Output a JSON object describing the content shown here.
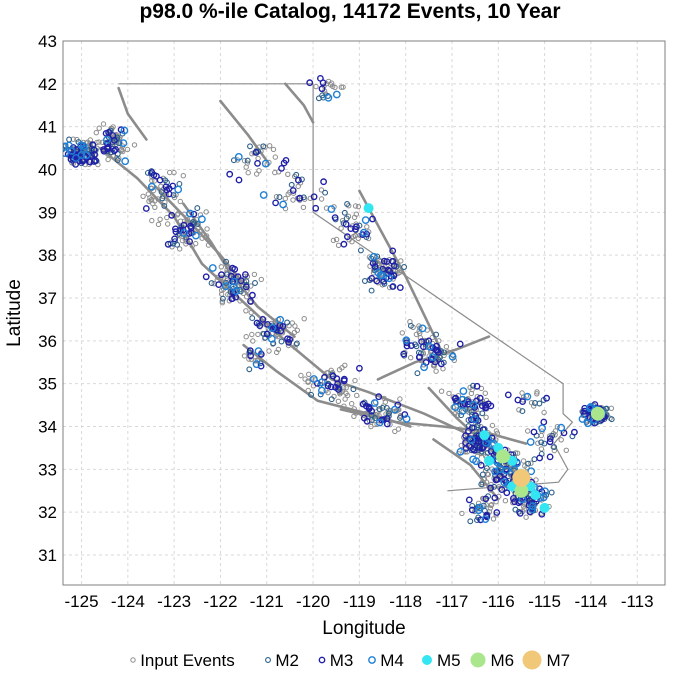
{
  "chart_data": {
    "type": "scatter",
    "title": "p98.0 %-ile Catalog, 14172 Events, 10 Year",
    "xlabel": "Longitude",
    "ylabel": "Latitude",
    "xlim": [
      -125.4,
      -112.4
    ],
    "ylim": [
      30.3,
      43.0
    ],
    "xticks": [
      -125,
      -124,
      -123,
      -122,
      -121,
      -120,
      -119,
      -118,
      -117,
      -116,
      -115,
      -114,
      -113
    ],
    "yticks": [
      31,
      32,
      33,
      34,
      35,
      36,
      37,
      38,
      39,
      40,
      41,
      42,
      43
    ],
    "grid": true,
    "legend_position": "bottom",
    "legend": [
      "Input Events",
      "M2",
      "M3",
      "M4",
      "M5",
      "M6",
      "M7"
    ],
    "colors": {
      "input_events": "#8c8c8c",
      "M2": "#2b5f8a",
      "M3": "#1f1fa8",
      "M4": "#1e7fd6",
      "M5": "#33e6f2",
      "M6": "#a9e68c",
      "M7": "#f0c878",
      "boundary": "#8c8c8c"
    },
    "boundary": [
      [
        -124.2,
        42.0
      ],
      [
        -120.0,
        42.0
      ],
      [
        -120.0,
        39.0
      ],
      [
        -114.6,
        35.0
      ],
      [
        -114.6,
        34.3
      ],
      [
        -114.4,
        34.1
      ],
      [
        -114.8,
        33.6
      ],
      [
        -114.5,
        33.0
      ],
      [
        -114.7,
        32.7
      ],
      [
        -117.1,
        32.5
      ]
    ],
    "faults": [
      [
        [
          -124.6,
          40.5
        ],
        [
          -123.8,
          39.8
        ],
        [
          -123.0,
          38.9
        ],
        [
          -122.4,
          37.8
        ],
        [
          -121.6,
          37.0
        ],
        [
          -120.6,
          36.0
        ],
        [
          -119.6,
          35.1
        ],
        [
          -118.8,
          34.8
        ],
        [
          -117.6,
          34.3
        ],
        [
          -116.8,
          33.9
        ],
        [
          -116.0,
          33.4
        ],
        [
          -115.6,
          33.0
        ]
      ],
      [
        [
          -122.8,
          39.2
        ],
        [
          -122.2,
          38.3
        ],
        [
          -121.8,
          37.6
        ],
        [
          -121.2,
          36.8
        ],
        [
          -120.4,
          36.1
        ]
      ],
      [
        [
          -121.5,
          35.9
        ],
        [
          -120.8,
          35.3
        ],
        [
          -119.9,
          34.6
        ],
        [
          -118.8,
          34.3
        ],
        [
          -117.9,
          34.0
        ]
      ],
      [
        [
          -118.6,
          35.1
        ],
        [
          -117.8,
          35.5
        ],
        [
          -116.9,
          35.8
        ],
        [
          -116.2,
          36.1
        ]
      ],
      [
        [
          -117.5,
          34.9
        ],
        [
          -116.9,
          34.2
        ],
        [
          -116.3,
          33.6
        ],
        [
          -115.6,
          32.9
        ],
        [
          -115.2,
          32.4
        ]
      ],
      [
        [
          -117.4,
          33.7
        ],
        [
          -116.6,
          33.1
        ],
        [
          -116.0,
          32.3
        ]
      ],
      [
        [
          -119.0,
          39.5
        ],
        [
          -118.5,
          38.5
        ],
        [
          -118.0,
          37.5
        ],
        [
          -117.6,
          36.6
        ],
        [
          -117.2,
          35.7
        ]
      ],
      [
        [
          -122.0,
          41.6
        ],
        [
          -121.4,
          40.8
        ],
        [
          -121.0,
          40.2
        ]
      ],
      [
        [
          -120.6,
          42.0
        ],
        [
          -120.2,
          41.5
        ],
        [
          -120.0,
          41.1
        ]
      ],
      [
        [
          -124.2,
          41.9
        ],
        [
          -124.0,
          41.3
        ],
        [
          -123.6,
          40.7
        ]
      ],
      [
        [
          -123.4,
          39.6
        ],
        [
          -122.6,
          38.7
        ],
        [
          -122.0,
          38.0
        ],
        [
          -121.4,
          37.2
        ]
      ],
      [
        [
          -119.4,
          34.4
        ],
        [
          -118.2,
          34.1
        ],
        [
          -117.2,
          34.0
        ],
        [
          -116.4,
          33.9
        ],
        [
          -115.4,
          33.6
        ]
      ]
    ],
    "event_clusters": [
      {
        "lon": -125.0,
        "lat": 40.4,
        "lon_spread": 0.35,
        "lat_spread": 0.25,
        "n_input": 60,
        "n_m2": 30,
        "n_m3": 28,
        "n_m4": 10
      },
      {
        "lon": -124.3,
        "lat": 40.6,
        "lon_spread": 0.3,
        "lat_spread": 0.35,
        "n_input": 45,
        "n_m2": 14,
        "n_m3": 12,
        "n_m4": 4
      },
      {
        "lon": -123.3,
        "lat": 39.5,
        "lon_spread": 0.4,
        "lat_spread": 0.5,
        "n_input": 35,
        "n_m2": 10,
        "n_m3": 10,
        "n_m4": 2
      },
      {
        "lon": -122.7,
        "lat": 38.6,
        "lon_spread": 0.35,
        "lat_spread": 0.4,
        "n_input": 40,
        "n_m2": 12,
        "n_m3": 14,
        "n_m4": 4
      },
      {
        "lon": -121.7,
        "lat": 37.3,
        "lon_spread": 0.45,
        "lat_spread": 0.45,
        "n_input": 50,
        "n_m2": 14,
        "n_m3": 18,
        "n_m4": 5
      },
      {
        "lon": -120.8,
        "lat": 36.2,
        "lon_spread": 0.45,
        "lat_spread": 0.4,
        "n_input": 45,
        "n_m2": 12,
        "n_m3": 14,
        "n_m4": 3
      },
      {
        "lon": -121.2,
        "lat": 35.6,
        "lon_spread": 0.25,
        "lat_spread": 0.25,
        "n_input": 10,
        "n_m2": 4,
        "n_m3": 4,
        "n_m4": 2
      },
      {
        "lon": -119.6,
        "lat": 35.0,
        "lon_spread": 0.5,
        "lat_spread": 0.35,
        "n_input": 40,
        "n_m2": 10,
        "n_m3": 12,
        "n_m4": 3
      },
      {
        "lon": -118.6,
        "lat": 34.3,
        "lon_spread": 0.55,
        "lat_spread": 0.3,
        "n_input": 45,
        "n_m2": 12,
        "n_m3": 14,
        "n_m4": 4
      },
      {
        "lon": -118.5,
        "lat": 37.6,
        "lon_spread": 0.35,
        "lat_spread": 0.35,
        "n_input": 45,
        "n_m2": 16,
        "n_m3": 18,
        "n_m4": 5
      },
      {
        "lon": -119.2,
        "lat": 38.6,
        "lon_spread": 0.45,
        "lat_spread": 0.45,
        "n_input": 25,
        "n_m2": 8,
        "n_m3": 10,
        "n_m4": 3
      },
      {
        "lon": -120.4,
        "lat": 39.4,
        "lon_spread": 0.5,
        "lat_spread": 0.45,
        "n_input": 20,
        "n_m2": 6,
        "n_m3": 8,
        "n_m4": 2
      },
      {
        "lon": -121.2,
        "lat": 40.3,
        "lon_spread": 0.5,
        "lat_spread": 0.45,
        "n_input": 20,
        "n_m2": 6,
        "n_m3": 7,
        "n_m4": 2
      },
      {
        "lon": -117.7,
        "lat": 36.0,
        "lon_spread": 0.4,
        "lat_spread": 0.4,
        "n_input": 25,
        "n_m2": 10,
        "n_m3": 10,
        "n_m4": 3
      },
      {
        "lon": -117.3,
        "lat": 35.6,
        "lon_spread": 0.35,
        "lat_spread": 0.3,
        "n_input": 25,
        "n_m2": 8,
        "n_m3": 10,
        "n_m4": 3
      },
      {
        "lon": -116.6,
        "lat": 34.5,
        "lon_spread": 0.45,
        "lat_spread": 0.35,
        "n_input": 40,
        "n_m2": 16,
        "n_m3": 20,
        "n_m4": 6
      },
      {
        "lon": -116.4,
        "lat": 33.6,
        "lon_spread": 0.35,
        "lat_spread": 0.35,
        "n_input": 60,
        "n_m2": 24,
        "n_m3": 26,
        "n_m4": 8
      },
      {
        "lon": -115.8,
        "lat": 32.9,
        "lon_spread": 0.45,
        "lat_spread": 0.45,
        "n_input": 70,
        "n_m2": 30,
        "n_m3": 34,
        "n_m4": 12
      },
      {
        "lon": -115.3,
        "lat": 32.3,
        "lon_spread": 0.35,
        "lat_spread": 0.3,
        "n_input": 40,
        "n_m2": 18,
        "n_m3": 20,
        "n_m4": 8
      },
      {
        "lon": -116.3,
        "lat": 32.1,
        "lon_spread": 0.35,
        "lat_spread": 0.3,
        "n_input": 20,
        "n_m2": 8,
        "n_m3": 8,
        "n_m4": 3
      },
      {
        "lon": -114.9,
        "lat": 33.7,
        "lon_spread": 0.4,
        "lat_spread": 0.35,
        "n_input": 14,
        "n_m2": 8,
        "n_m3": 8,
        "n_m4": 3
      },
      {
        "lon": -113.9,
        "lat": 34.3,
        "lon_spread": 0.25,
        "lat_spread": 0.2,
        "n_input": 30,
        "n_m2": 22,
        "n_m3": 26,
        "n_m4": 10
      },
      {
        "lon": -119.7,
        "lat": 41.9,
        "lon_spread": 0.3,
        "lat_spread": 0.25,
        "n_input": 12,
        "n_m2": 4,
        "n_m3": 4,
        "n_m4": 2
      },
      {
        "lon": -115.3,
        "lat": 34.6,
        "lon_spread": 0.4,
        "lat_spread": 0.3,
        "n_input": 10,
        "n_m2": 4,
        "n_m3": 4,
        "n_m4": 1
      }
    ],
    "large_events": [
      {
        "lon": -118.8,
        "lat": 39.1,
        "mag": "M5"
      },
      {
        "lon": -116.3,
        "lat": 33.8,
        "mag": "M5"
      },
      {
        "lon": -116.0,
        "lat": 33.5,
        "mag": "M5"
      },
      {
        "lon": -115.7,
        "lat": 33.2,
        "mag": "M5"
      },
      {
        "lon": -115.5,
        "lat": 32.9,
        "mag": "M5"
      },
      {
        "lon": -115.3,
        "lat": 32.6,
        "mag": "M5"
      },
      {
        "lon": -115.7,
        "lat": 32.6,
        "mag": "M5"
      },
      {
        "lon": -115.0,
        "lat": 32.1,
        "mag": "M5"
      },
      {
        "lon": -115.2,
        "lat": 32.4,
        "mag": "M5"
      },
      {
        "lon": -116.2,
        "lat": 33.2,
        "mag": "M5"
      },
      {
        "lon": -113.85,
        "lat": 34.35,
        "mag": "M5"
      },
      {
        "lon": -115.9,
        "lat": 33.3,
        "mag": "M6"
      },
      {
        "lon": -115.5,
        "lat": 32.5,
        "mag": "M6"
      },
      {
        "lon": -113.85,
        "lat": 34.3,
        "mag": "M6"
      },
      {
        "lon": -115.5,
        "lat": 32.8,
        "mag": "M7"
      }
    ]
  }
}
